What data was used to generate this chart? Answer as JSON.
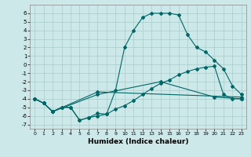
{
  "title": "",
  "xlabel": "Humidex (Indice chaleur)",
  "background_color": "#cce8e8",
  "grid_color": "#aacccc",
  "line_color": "#006666",
  "xlim": [
    -0.5,
    23.5
  ],
  "ylim": [
    -7.5,
    7.0
  ],
  "yticks": [
    -7,
    -6,
    -5,
    -4,
    -3,
    -2,
    -1,
    0,
    1,
    2,
    3,
    4,
    5,
    6
  ],
  "xticks": [
    0,
    1,
    2,
    3,
    4,
    5,
    6,
    7,
    8,
    9,
    10,
    11,
    12,
    13,
    14,
    15,
    16,
    17,
    18,
    19,
    20,
    21,
    22,
    23
  ],
  "line1_x": [
    0,
    1,
    2,
    3,
    4,
    5,
    6,
    7,
    8,
    9,
    10,
    11,
    12,
    13,
    14,
    15,
    16,
    17,
    18,
    19,
    20,
    21,
    22,
    23
  ],
  "line1_y": [
    -4,
    -4.5,
    -5.5,
    -5.0,
    -5.0,
    -6.5,
    -6.2,
    -6.0,
    -5.8,
    -3.0,
    2.0,
    4.0,
    5.5,
    6.0,
    6.0,
    6.0,
    5.8,
    3.5,
    2.0,
    1.5,
    0.5,
    -0.5,
    -2.5,
    -3.5
  ],
  "line2_x": [
    0,
    1,
    2,
    3,
    4,
    5,
    6,
    7,
    8,
    9,
    10,
    11,
    12,
    13,
    14,
    15,
    16,
    17,
    18,
    19,
    20,
    21,
    22,
    23
  ],
  "line2_y": [
    -4,
    -4.5,
    -5.5,
    -5.0,
    -5.0,
    -6.5,
    -6.2,
    -5.7,
    -5.8,
    -5.2,
    -4.8,
    -4.2,
    -3.5,
    -2.8,
    -2.2,
    -1.8,
    -1.2,
    -0.8,
    -0.5,
    -0.3,
    -0.2,
    -3.5,
    -4.0,
    -4.0
  ],
  "line3_x": [
    0,
    1,
    2,
    7,
    23
  ],
  "line3_y": [
    -4,
    -4.5,
    -5.5,
    -3.2,
    -3.8
  ],
  "line4_x": [
    0,
    1,
    2,
    7,
    14,
    20,
    23
  ],
  "line4_y": [
    -4,
    -4.5,
    -5.5,
    -3.5,
    -2.0,
    -3.8,
    -4.0
  ]
}
